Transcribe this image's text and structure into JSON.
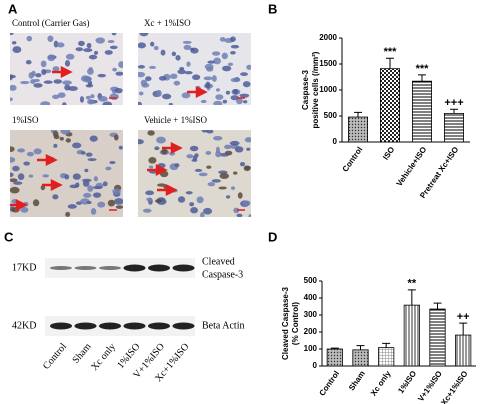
{
  "panel_labels": {
    "a": "A",
    "b": "B",
    "c": "C",
    "d": "D"
  },
  "micrographs": [
    {
      "caption": "Control (Carrier Gas)"
    },
    {
      "caption": "Xc + 1%ISO"
    },
    {
      "caption": "1%ISO"
    },
    {
      "caption": "Vehicle + 1%ISO"
    }
  ],
  "blot": {
    "lanes": [
      "Control",
      "Sham",
      "Xc only",
      "1%ISO",
      "V+1%ISO",
      "Xc+1%ISO"
    ],
    "rows": [
      {
        "size": "17KD",
        "label": [
          "Cleaved",
          "Caspase-3"
        ]
      },
      {
        "size": "42KD",
        "label": [
          "Beta Actin"
        ]
      }
    ]
  },
  "chart_data": [
    {
      "type": "bar",
      "ylabel": [
        "Caspase-3",
        "positive cells (/mm²)"
      ],
      "categories": [
        "Control",
        "ISO",
        "Vehicle+ISO",
        "Pretreat Xc+ISO"
      ],
      "values": [
        480,
        1410,
        1170,
        550
      ],
      "errors": [
        90,
        200,
        120,
        80
      ],
      "annotations": [
        null,
        "***",
        "***",
        "+++"
      ],
      "patterns": [
        "dots",
        "checker",
        "hlines",
        "hlines"
      ],
      "ylim": [
        0,
        2000
      ],
      "yticks": [
        0,
        500,
        1000,
        1500,
        2000
      ]
    },
    {
      "type": "bar",
      "ylabel": [
        "Cleaved Caspase-3",
        "(% Control)"
      ],
      "categories": [
        "Control",
        "Sham",
        "Xc only",
        "1%ISO",
        "V+1%ISO",
        "Xc+1%ISO"
      ],
      "values": [
        100,
        95,
        108,
        358,
        335,
        182
      ],
      "errors": [
        5,
        25,
        25,
        90,
        35,
        70
      ],
      "annotations": [
        null,
        null,
        null,
        "**",
        null,
        "++"
      ],
      "patterns": [
        "dots",
        "dots",
        "grid",
        "vlines",
        "hlines",
        "vlines"
      ],
      "ylim": [
        0,
        500
      ],
      "yticks": [
        0,
        100,
        200,
        300,
        400,
        500
      ]
    }
  ]
}
